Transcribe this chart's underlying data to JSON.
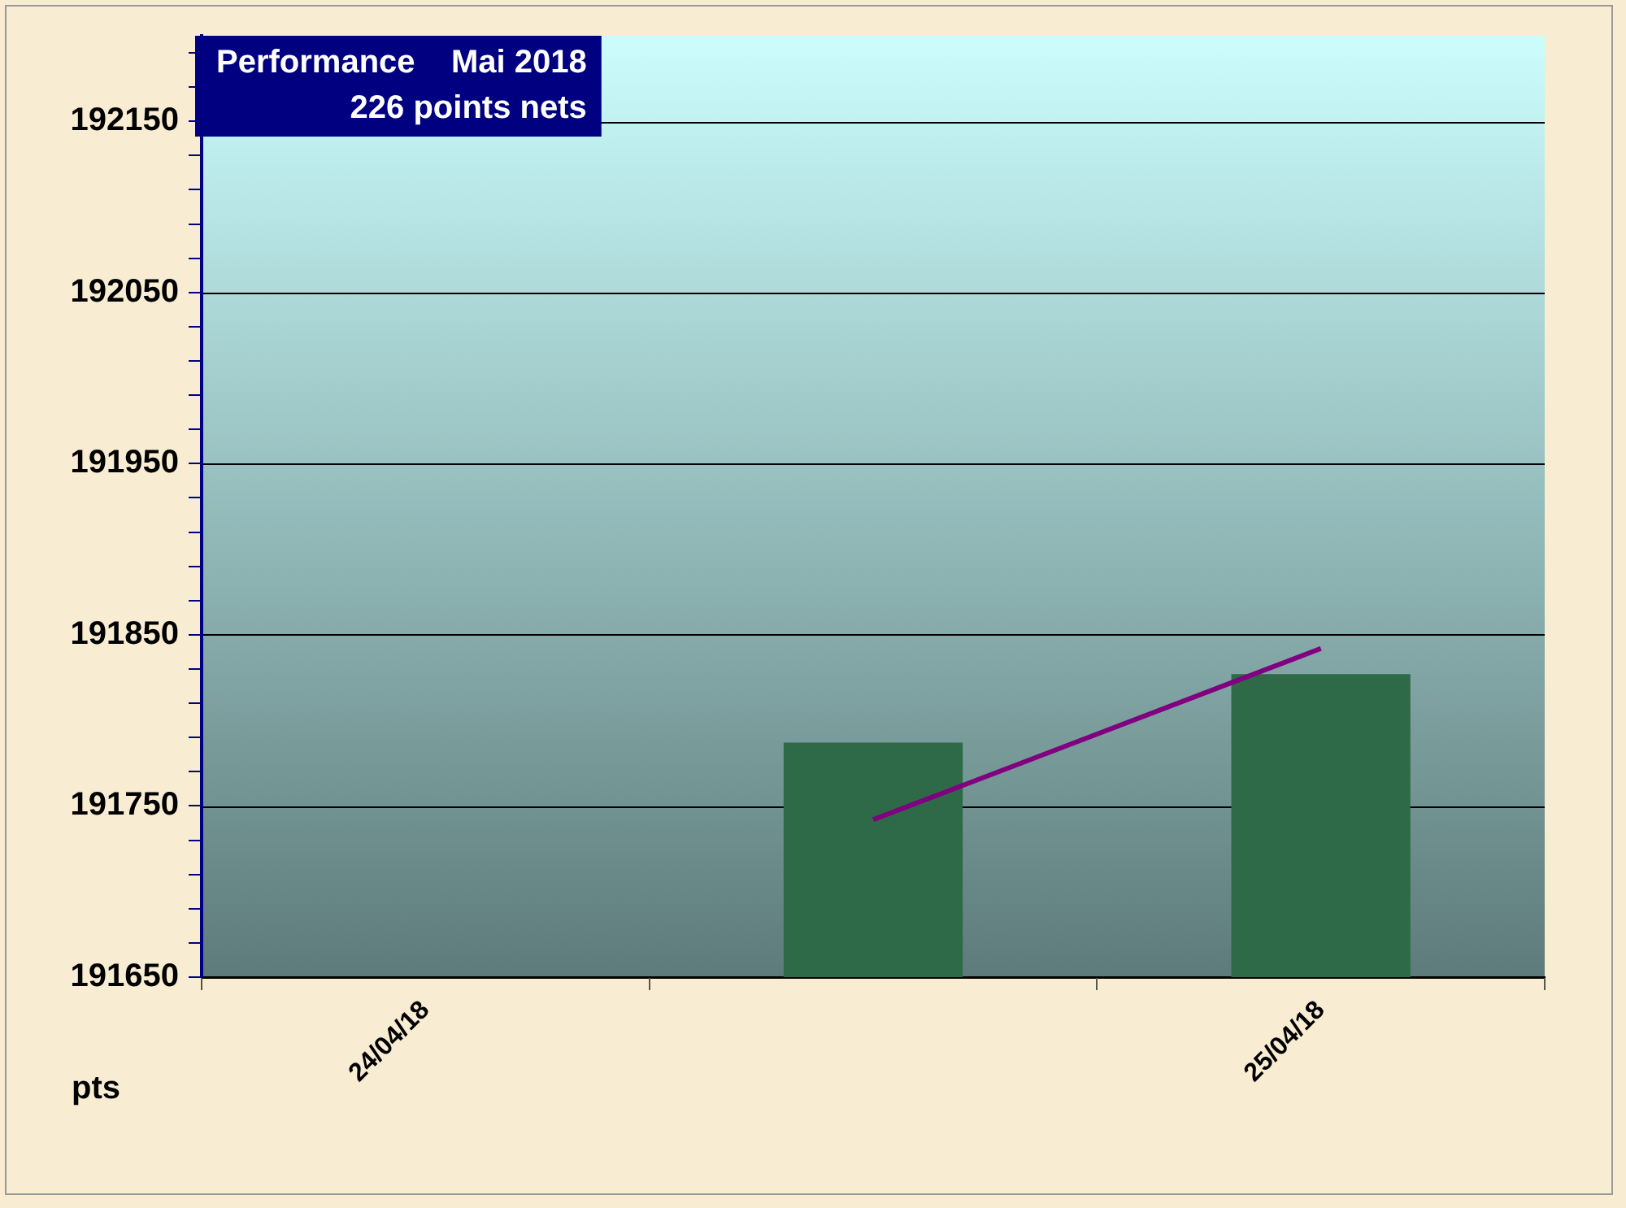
{
  "chart_data": {
    "type": "bar",
    "title": "Performance    Mai 2018",
    "subtitle": "226 points nets",
    "ylabel": "pts",
    "categories": [
      "24/04/18",
      null,
      "25/04/18"
    ],
    "series": [
      {
        "color": "#2e6a48",
        "values": [
          null,
          191787,
          191827
        ]
      },
      {
        "type": "line",
        "color": "#800080",
        "values": [
          null,
          191742,
          191842
        ]
      }
    ],
    "ylim": [
      191650,
      192200
    ],
    "yticks": [
      191650,
      {
        "value": 191670,
        "label": null
      },
      {
        "value": 191690,
        "label": null
      },
      {
        "value": 191710,
        "label": null
      },
      {
        "value": 191730,
        "label": null
      },
      191750,
      {
        "value": 191770,
        "label": null
      },
      {
        "value": 191790,
        "label": null
      },
      {
        "value": 191810,
        "label": null
      },
      {
        "value": 191830,
        "label": null
      },
      191850,
      {
        "value": 191870,
        "label": null
      },
      {
        "value": 191890,
        "label": null
      },
      {
        "value": 191910,
        "label": null
      },
      {
        "value": 191930,
        "label": null
      },
      191950,
      {
        "value": 191970,
        "label": null
      },
      {
        "value": 191990,
        "label": null
      },
      {
        "value": 192010,
        "label": null
      },
      {
        "value": 192030,
        "label": null
      },
      192050,
      {
        "value": 192070,
        "label": null
      },
      {
        "value": 192090,
        "label": null
      },
      {
        "value": 192110,
        "label": null
      },
      {
        "value": 192130,
        "label": null
      },
      192150,
      {
        "value": 192170,
        "label": null
      },
      {
        "value": 192190,
        "label": null
      }
    ],
    "grid": "y",
    "legend": false,
    "marker": "none",
    "line_style": "solid"
  }
}
